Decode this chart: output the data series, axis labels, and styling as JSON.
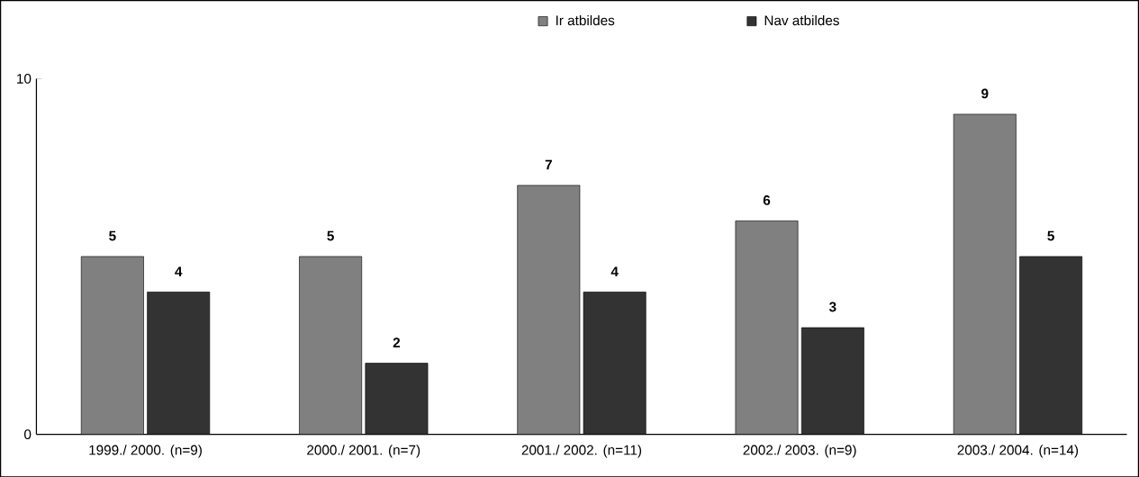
{
  "chart_data": {
    "type": "bar",
    "categories": [
      "1999./ 2000. (n=9)",
      "2000./ 2001. (n=7)",
      "2001./ 2002. (n=11)",
      "2002./ 2003. (n=9)",
      "2003./ 2004. (n=14)"
    ],
    "series": [
      {
        "name": "Ir atbildes",
        "color": "#808080",
        "values": [
          5,
          5,
          7,
          6,
          9
        ]
      },
      {
        "name": "Nav atbildes",
        "color": "#333333",
        "values": [
          4,
          2,
          4,
          3,
          5
        ]
      }
    ],
    "ylim": [
      0,
      10
    ],
    "yticks": [
      0,
      10
    ],
    "data_labels": true,
    "legend": "top",
    "grid": false
  }
}
